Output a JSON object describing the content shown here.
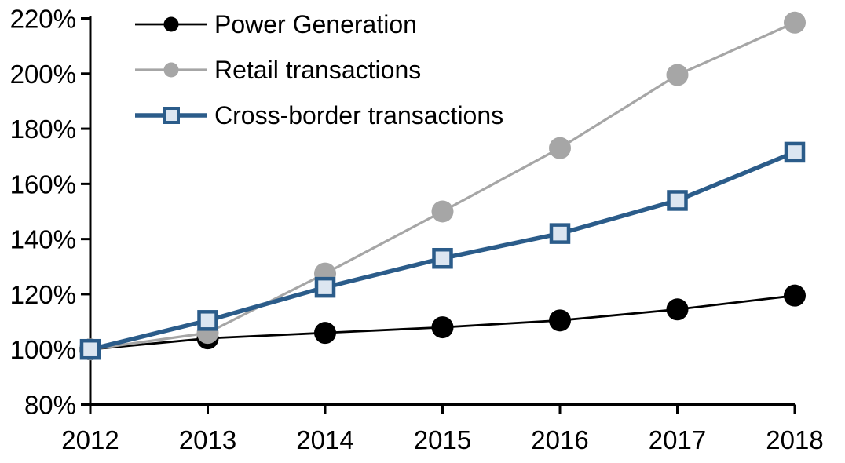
{
  "chart_data": {
    "type": "line",
    "title": "",
    "xlabel": "",
    "ylabel": "",
    "grid": false,
    "legend_position": "top-left-inside",
    "background_color": "#ffffff",
    "axis_color": "#000000",
    "x": [
      2012,
      2013,
      2014,
      2015,
      2016,
      2017,
      2018
    ],
    "x_tick_labels": [
      "2012",
      "2013",
      "2014",
      "2015",
      "2016",
      "2017",
      "2018"
    ],
    "ylim": [
      80,
      220
    ],
    "y_tick_step": 20,
    "y_tick_labels": [
      "80%",
      "100%",
      "120%",
      "140%",
      "160%",
      "180%",
      "200%",
      "220%"
    ],
    "series": [
      {
        "name": "Power Generation",
        "color": "#000000",
        "marker": "circle",
        "marker_fill": "#000000",
        "marker_stroke": "#000000",
        "line_width": 2.8,
        "values": [
          100,
          104,
          106,
          108,
          110.5,
          114.5,
          119.5
        ]
      },
      {
        "name": "Retail transactions",
        "color": "#a6a6a6",
        "marker": "circle",
        "marker_fill": "#a6a6a6",
        "marker_stroke": "#a6a6a6",
        "line_width": 3.2,
        "values": [
          100,
          106,
          127.5,
          150,
          173,
          199.5,
          218.5
        ]
      },
      {
        "name": "Cross-border transactions",
        "color": "#2b5c8a",
        "marker": "square",
        "marker_fill": "#dce6f1",
        "marker_stroke": "#2b5c8a",
        "line_width": 5.5,
        "values": [
          100,
          110.5,
          122.5,
          133,
          142,
          154,
          171.5
        ]
      }
    ]
  }
}
